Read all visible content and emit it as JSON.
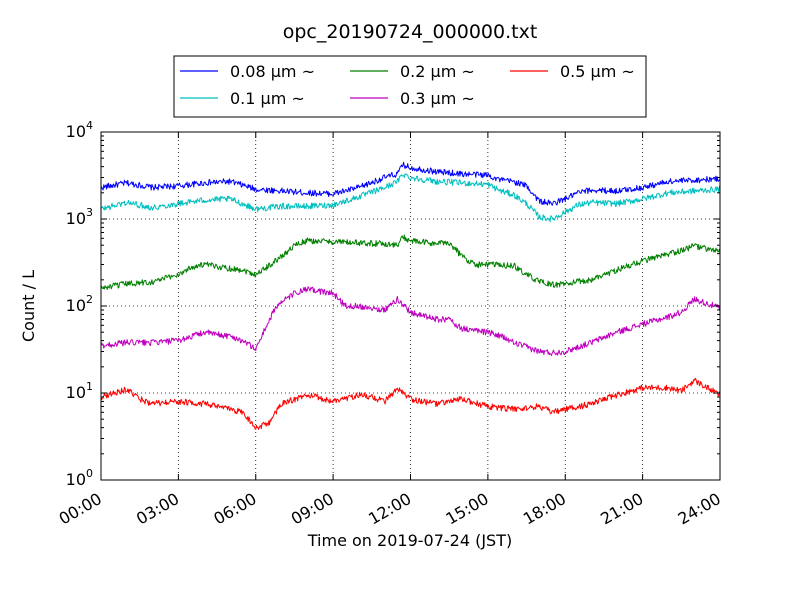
{
  "chart_data": {
    "type": "line",
    "title": "opc_20190724_000000.txt",
    "xlabel": "Time on 2019-07-24 (JST)",
    "ylabel": "Count / L",
    "xlim": [
      0,
      24
    ],
    "ylim": [
      1,
      10000
    ],
    "yscale": "log",
    "grid": true,
    "legend_position": "top-center, above plot",
    "x_ticks": [
      {
        "value": 0,
        "label": "00:00"
      },
      {
        "value": 3,
        "label": "03:00"
      },
      {
        "value": 6,
        "label": "06:00"
      },
      {
        "value": 9,
        "label": "09:00"
      },
      {
        "value": 12,
        "label": "12:00"
      },
      {
        "value": 15,
        "label": "15:00"
      },
      {
        "value": 18,
        "label": "18:00"
      },
      {
        "value": 21,
        "label": "21:00"
      },
      {
        "value": 24,
        "label": "24:00"
      }
    ],
    "y_ticks": [
      {
        "value": 1,
        "base": "10",
        "exp": "0"
      },
      {
        "value": 10,
        "base": "10",
        "exp": "1"
      },
      {
        "value": 100,
        "base": "10",
        "exp": "2"
      },
      {
        "value": 1000,
        "base": "10",
        "exp": "3"
      },
      {
        "value": 10000,
        "base": "10",
        "exp": "4"
      }
    ],
    "series": [
      {
        "name": "0.08 μm ~",
        "color": "#0000ff",
        "x": [
          0,
          1,
          2,
          3,
          4,
          5,
          5.6,
          6,
          6.5,
          7,
          8,
          9,
          10,
          11,
          11.5,
          11.7,
          12,
          13,
          14,
          15,
          15.5,
          16,
          16.5,
          17,
          17.5,
          18,
          18.5,
          19,
          20,
          21,
          22,
          23,
          24
        ],
        "y": [
          2300,
          2600,
          2300,
          2400,
          2600,
          2700,
          2400,
          2200,
          2150,
          2100,
          2000,
          1950,
          2300,
          3000,
          3300,
          4200,
          3900,
          3500,
          3300,
          3200,
          2800,
          2700,
          2400,
          1600,
          1500,
          1700,
          2000,
          2150,
          2100,
          2300,
          2700,
          2800,
          2900
        ]
      },
      {
        "name": "0.1 μm ~",
        "color": "#00bfbf",
        "x": [
          0,
          1,
          2,
          3,
          4,
          5,
          5.6,
          6,
          6.5,
          7,
          8,
          9,
          10,
          11,
          11.5,
          11.7,
          12,
          13,
          14,
          15,
          15.5,
          16,
          16.5,
          17,
          17.5,
          18,
          18.5,
          19,
          20,
          21,
          22,
          23,
          24
        ],
        "y": [
          1300,
          1550,
          1350,
          1500,
          1650,
          1700,
          1450,
          1300,
          1350,
          1400,
          1400,
          1450,
          1800,
          2300,
          2700,
          3300,
          3000,
          2700,
          2600,
          2500,
          2100,
          1900,
          1500,
          1050,
          1000,
          1200,
          1450,
          1550,
          1500,
          1700,
          2000,
          2100,
          2200
        ]
      },
      {
        "name": "0.2 μm ~",
        "color": "#008000",
        "x": [
          0,
          1,
          2,
          3,
          3.5,
          4,
          5,
          5.5,
          6,
          6.5,
          7,
          7.5,
          8,
          9,
          10,
          11,
          11.5,
          11.7,
          12,
          13,
          13.5,
          14,
          14.5,
          15,
          16,
          16.5,
          17,
          17.5,
          18,
          19,
          20,
          21,
          22,
          23,
          24
        ],
        "y": [
          160,
          180,
          190,
          230,
          280,
          300,
          270,
          260,
          230,
          290,
          370,
          500,
          560,
          550,
          530,
          520,
          500,
          620,
          560,
          520,
          540,
          370,
          300,
          300,
          290,
          230,
          190,
          175,
          180,
          200,
          260,
          330,
          390,
          490,
          420
        ]
      },
      {
        "name": "0.3 μm ~",
        "color": "#bf00bf",
        "x": [
          0,
          1,
          2,
          3,
          4,
          4.5,
          5,
          5.5,
          6,
          6.3,
          6.8,
          7.5,
          8,
          9,
          9.5,
          10,
          11,
          11.5,
          12,
          13,
          13.5,
          14,
          15,
          15.5,
          16,
          17,
          17.5,
          18,
          19,
          20,
          21,
          22,
          22.5,
          23,
          24
        ],
        "y": [
          35,
          38,
          38,
          40,
          50,
          47,
          45,
          40,
          32,
          50,
          100,
          140,
          155,
          140,
          100,
          100,
          90,
          120,
          85,
          70,
          70,
          55,
          50,
          45,
          38,
          30,
          29,
          30,
          38,
          50,
          62,
          75,
          85,
          120,
          95
        ]
      },
      {
        "name": "0.5 μm ~",
        "color": "#ff0000",
        "x": [
          0,
          0.5,
          1,
          1.5,
          2,
          3,
          4,
          5,
          5.5,
          6,
          6.5,
          7,
          8,
          9,
          10,
          10.5,
          11,
          11.5,
          12,
          13,
          14,
          15,
          16,
          17,
          17.5,
          18,
          19,
          20,
          21,
          22,
          22.5,
          23,
          24
        ],
        "y": [
          9,
          10,
          11,
          8.5,
          7.5,
          8,
          7.5,
          6.5,
          6,
          4,
          4.5,
          7.5,
          9.5,
          8,
          9.5,
          9,
          8,
          11,
          8.5,
          7.5,
          8.5,
          7,
          6.5,
          7,
          6,
          6.5,
          7.5,
          9.5,
          11.5,
          11.5,
          10.5,
          14,
          9.5
        ]
      }
    ]
  }
}
